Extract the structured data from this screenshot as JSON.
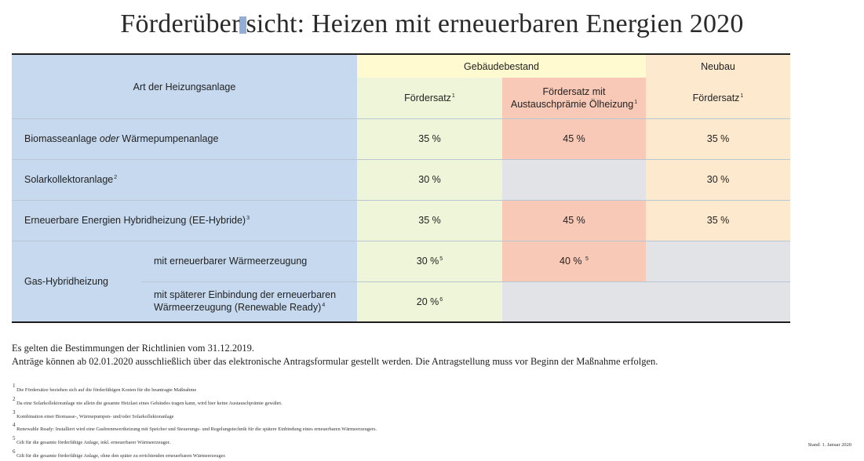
{
  "title": {
    "before": "Förderüber",
    "after": "sicht: Heizen mit erneuerbaren Energien 2020"
  },
  "table": {
    "header": {
      "row_header": "Art der Heizungsanlage",
      "group_existing": "Gebäudebestand",
      "group_new": "Neubau",
      "col_rate": "Fördersatz",
      "col_rate_sup": "1",
      "col_premium_line1": "Fördersatz mit",
      "col_premium_line2": "Austauschprämie Ölheizung",
      "col_premium_sup": "1",
      "col_new_rate": "Fördersatz",
      "col_new_rate_sup": "1"
    },
    "rows": [
      {
        "label_a": "Biomasseanlage ",
        "label_em": "oder",
        "label_b": " Wärmepumpenanlage",
        "rate": "35 %",
        "premium": "45 %",
        "new": "35 %"
      },
      {
        "label": "Solarkollektoranlage",
        "sup": "2",
        "rate": "30 %",
        "premium": "",
        "new": "30 %"
      },
      {
        "label": "Erneuerbare Energien Hybridheizung (EE-Hybride)",
        "sup": "3",
        "rate": "35 %",
        "premium": "45 %",
        "new": "35 %"
      }
    ],
    "gas": {
      "label": "Gas-Hybridheizung",
      "sub1": {
        "label": "mit erneuerbarer Wärmeerzeugung",
        "rate": "30 %",
        "rate_sup": "5",
        "premium": "40 %",
        "premium_sup": "5"
      },
      "sub2": {
        "label_line1": "mit späterer Einbindung der erneuerbaren",
        "label_line2": "Wärmeerzeugung (Renewable Ready)",
        "label_sup": "4",
        "rate": "20 %",
        "rate_sup": "6"
      }
    }
  },
  "notes": {
    "line1": "Es gelten die Bestimmungen der Richtlinien vom 31.12.2019.",
    "line2": "Anträge können ab 02.01.2020 ausschließlich über das elektronische Antragsformular gestellt werden. Die Antragstellung muss vor Beginn der Maßnahme erfolgen."
  },
  "footnotes": [
    {
      "num": "1",
      "text": " Die Fördersätze beziehen sich auf die förderfähigen Kosten für die beantragte Maßnahme"
    },
    {
      "num": "2",
      "text": " Da eine Solarkollektoranlage nie allein die gesamte Heizlast eines Gebäudes tragen kann, wird hier keine Austauschprämie gewährt."
    },
    {
      "num": "3",
      "text": " Kombination einer Biomasse-, Wärmepumpen- und/oder Solarkollektoranlage"
    },
    {
      "num": "4",
      "text": " Renewable Ready: Installiert wird eine Gasbrennwertheizung mit Speicher und Steuerungs- und Regelungstechnik für die spätere Einbindung eines erneuerbaren Wärmeerzeugers."
    },
    {
      "num": "5",
      "text": " Gilt für die gesamte förderfähige Anlage, inkl. erneuerbarer Wärmeerzeuger."
    },
    {
      "num": "6",
      "text": " Gilt für die gesamte förderfähige Anlage, ohne den später zu errichtenden erneuerbaren Wärmeerzeuger."
    }
  ],
  "stand": "Stand: 1. Januar 2020",
  "colors": {
    "blue": "#c6d9ef",
    "yellow": "#fffacf",
    "green": "#eef5d9",
    "salmon": "#f8c9b6",
    "peach": "#fde9cd",
    "grey": "#e1e3e6"
  }
}
